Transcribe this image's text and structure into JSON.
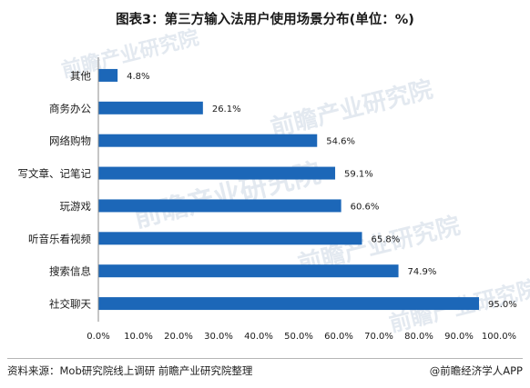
{
  "chart_data": {
    "type": "bar",
    "orientation": "horizontal",
    "title": "图表3：第三方输入法用户使用场景分布(单位：%)",
    "categories": [
      "其他",
      "商务办公",
      "网络购物",
      "写文章、记笔记",
      "玩游戏",
      "听音乐看视频",
      "搜索信息",
      "社交聊天"
    ],
    "values": [
      4.8,
      26.1,
      54.6,
      59.1,
      60.6,
      65.8,
      74.9,
      95.0
    ],
    "value_labels": [
      "4.8%",
      "26.1%",
      "54.6%",
      "59.1%",
      "60.6%",
      "65.8%",
      "74.9%",
      "95.0%"
    ],
    "x_ticks": [
      "0.0%",
      "10.0%",
      "20.0%",
      "30.0%",
      "40.0%",
      "50.0%",
      "60.0%",
      "70.0%",
      "80.0%",
      "90.0%",
      "100.0%"
    ],
    "xlim": [
      0,
      100
    ],
    "bar_color": "#1c67b8",
    "grid": false,
    "legend": "none"
  },
  "footer": {
    "source": "资料来源：Mob研究院线上调研 前瞻产业研究院整理",
    "brand": "@前瞻经济学人APP"
  },
  "watermark": {
    "text": "前瞻产业研究院"
  }
}
